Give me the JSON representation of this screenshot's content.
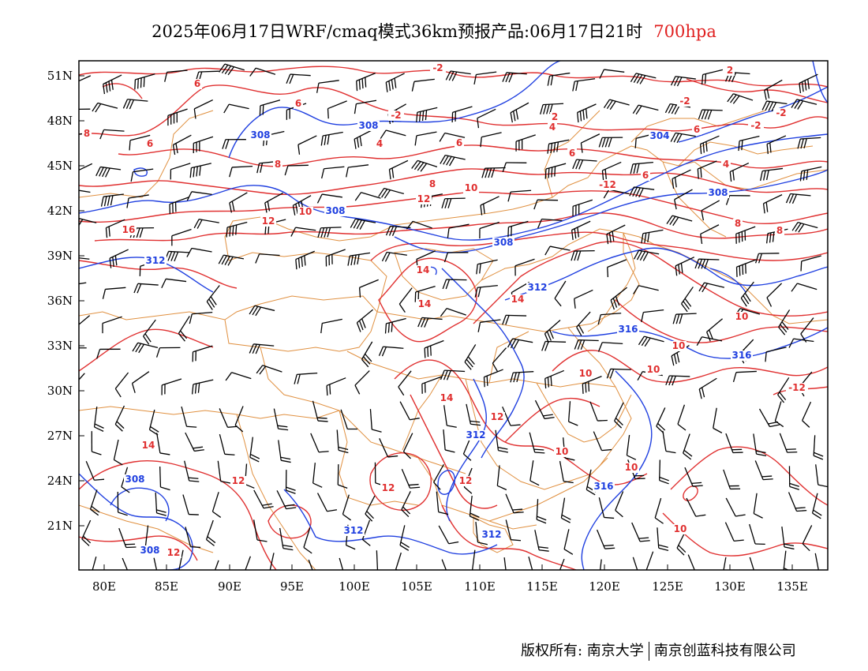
{
  "title": {
    "main": "2025年06月17日WRF/cmaq模式36km预报产品:06月17日21时",
    "level": "700hpa"
  },
  "axes": {
    "lat_labels": [
      "51N",
      "48N",
      "45N",
      "42N",
      "39N",
      "36N",
      "33N",
      "30N",
      "27N",
      "24N",
      "21N"
    ],
    "lon_labels": [
      "80E",
      "85E",
      "90E",
      "95E",
      "100E",
      "105E",
      "110E",
      "115E",
      "120E",
      "125E",
      "130E",
      "135E"
    ]
  },
  "colors": {
    "temperature": "#e03030",
    "geopotential": "#2040e0",
    "border": "#e09040",
    "wind": "#000000"
  },
  "temperature_labels": [
    "-2",
    "-2",
    "-2",
    "-2",
    "-2",
    "2",
    "2",
    "4",
    "4",
    "4",
    "6",
    "6",
    "6",
    "6",
    "6",
    "6",
    "6",
    "8",
    "8",
    "8",
    "8",
    "8",
    "10",
    "10",
    "10",
    "10",
    "10",
    "10",
    "10",
    "10",
    "10",
    "12",
    "12",
    "12",
    "12",
    "12",
    "12",
    "12",
    "14",
    "14",
    "14",
    "14",
    "14",
    "16",
    "-12",
    "-12"
  ],
  "height_labels": [
    "308",
    "308",
    "308",
    "308",
    "304",
    "308",
    "312",
    "312",
    "316",
    "316",
    "312",
    "308",
    "308",
    "312",
    "312",
    "316"
  ],
  "footer": {
    "left": "版权所有: 南京大学",
    "right": "南京创蓝科技有限公司"
  }
}
